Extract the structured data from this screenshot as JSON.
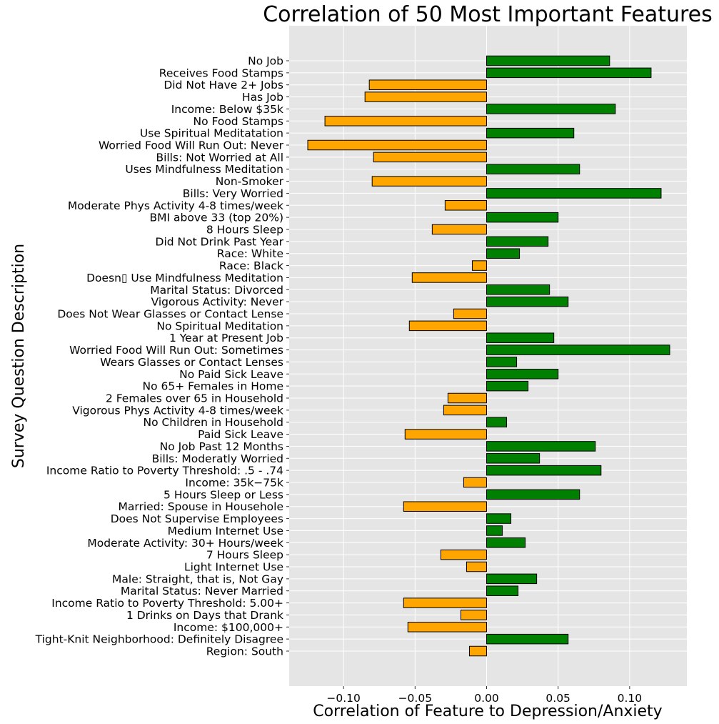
{
  "chart_data": {
    "type": "bar",
    "orientation": "horizontal",
    "title": "Correlation of 50 Most Important Features",
    "xlabel": "Correlation of Feature to Depression/Anxiety",
    "ylabel": "Survey Question Description",
    "xlim": [
      -0.138,
      0.14
    ],
    "xticks": [
      -0.1,
      -0.05,
      0.0,
      0.05,
      0.1
    ],
    "xtick_labels": [
      "−0.10",
      "−0.05",
      "0.00",
      "0.05",
      "0.10"
    ],
    "grid": true,
    "colors": {
      "positive": "#008000",
      "negative": "#ffa500",
      "background": "#e5e5e5",
      "grid": "#ffffff",
      "edge": "#000000"
    },
    "categories": [
      "No Job",
      "Receives Food Stamps",
      "Did Not Have 2+ Jobs",
      "Has Job",
      "Income: Below $35k",
      "No Food Stamps",
      "Use Spiritual Meditatation",
      "Worried Food Will Run Out: Never",
      "Bills: Not Worried at All",
      "Uses Mindfulness Meditation",
      "Non-Smoker",
      "Bills: Very Worried",
      "Moderate Phys Activity 4-8 times/week",
      "BMI above 33 (top 20%)",
      "8 Hours Sleep",
      "Did Not Drink Past Year",
      "Race: White",
      "Race: Black",
      "Doesn▯ Use Mindfulness Meditation",
      "Marital Status: Divorced",
      "Vigorous Activity: Never",
      "Does Not Wear Glasses or Contact Lense",
      "No Spiritual Meditation",
      "1 Year at Present Job",
      "Worried Food Will Run Out: Sometimes",
      "Wears Glasses or Contact Lenses",
      "No Paid Sick Leave",
      "No 65+ Females in Home",
      "2 Females over 65 in Household",
      "Vigorous Phys Activity 4-8 times/week",
      "No Children in Household",
      "Paid Sick Leave",
      "No Job Past 12 Months",
      "Bills: Moderatly Worried",
      "Income Ratio to Poverty Threshold: .5 - .74",
      "Income: 35k−75k",
      "5 Hours Sleep or Less",
      "Married: Spouse in Househole",
      "Does Not Supervise Employees",
      "Medium Internet Use",
      "Moderate Activity: 30+ Hours/week",
      "7 Hours Sleep",
      "Light Internet Use",
      "Male: Straight, that is, Not Gay",
      "Marital Status: Never Married",
      "Income Ratio to Poverty Threshold: 5.00+",
      "1 Drinks on Days that Drank",
      "Income: $100,000+",
      "Tight-Knit Neighborhood: Definitely Disagree",
      "Region: South"
    ],
    "values": [
      0.086,
      0.115,
      -0.082,
      -0.085,
      0.09,
      -0.113,
      0.061,
      -0.125,
      -0.079,
      0.065,
      -0.08,
      0.122,
      -0.029,
      0.05,
      -0.038,
      0.043,
      0.023,
      -0.01,
      -0.052,
      0.044,
      0.057,
      -0.023,
      -0.054,
      0.047,
      0.128,
      0.021,
      0.05,
      0.029,
      -0.027,
      -0.03,
      0.014,
      -0.057,
      0.076,
      0.037,
      0.08,
      -0.016,
      0.065,
      -0.058,
      0.017,
      0.011,
      0.027,
      -0.032,
      -0.014,
      0.035,
      0.022,
      -0.058,
      -0.018,
      -0.055,
      0.057,
      -0.012
    ]
  }
}
